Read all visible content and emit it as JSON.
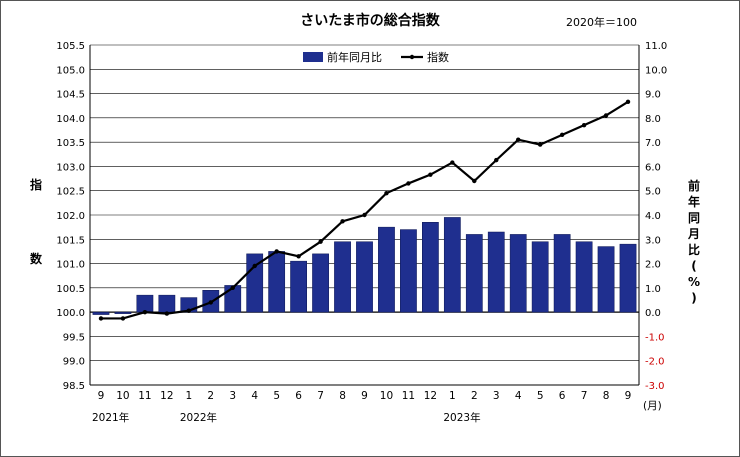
{
  "title": "さいたま市の総合指数",
  "base_note": "2020年＝100",
  "legend": {
    "bar_label": "前年同月比",
    "line_label": "指数"
  },
  "left_axis_label_top": "指",
  "left_axis_label_bottom": "数",
  "right_axis_label": "前年同月比(%)",
  "month_unit": "(月)",
  "year_labels": [
    {
      "label": "2021年",
      "index": 0
    },
    {
      "label": "2022年",
      "index": 4
    },
    {
      "label": "2023年",
      "index": 16
    }
  ],
  "chart_data": {
    "type": "bar",
    "categories": [
      "9",
      "10",
      "11",
      "12",
      "1",
      "2",
      "3",
      "4",
      "5",
      "6",
      "7",
      "8",
      "9",
      "10",
      "11",
      "12",
      "1",
      "2",
      "3",
      "4",
      "5",
      "6",
      "7",
      "8",
      "9"
    ],
    "series": [
      {
        "name": "前年同月比",
        "type": "bar",
        "axis": "right",
        "color": "#1f2f8f",
        "values": [
          -0.1,
          0.0,
          0.7,
          0.7,
          0.6,
          0.9,
          1.1,
          2.4,
          2.5,
          2.1,
          2.4,
          2.9,
          2.9,
          3.5,
          3.4,
          3.7,
          3.9,
          3.2,
          3.3,
          3.2,
          2.9,
          3.2,
          2.9,
          2.7,
          2.8
        ]
      },
      {
        "name": "指数",
        "type": "line",
        "axis": "left",
        "color": "#000000",
        "values": [
          99.87,
          99.87,
          100.0,
          99.97,
          100.03,
          100.2,
          100.5,
          100.95,
          101.25,
          101.15,
          101.45,
          101.87,
          102.0,
          102.45,
          102.65,
          102.83,
          103.08,
          102.7,
          103.13,
          103.55,
          103.45,
          103.65,
          103.85,
          104.05,
          104.33
        ]
      }
    ],
    "y_left": {
      "min": 98.5,
      "max": 105.5,
      "step": 0.5,
      "ticks": [
        "98.5",
        "99.0",
        "99.5",
        "100.0",
        "100.5",
        "101.0",
        "101.5",
        "102.0",
        "102.5",
        "103.0",
        "103.5",
        "104.0",
        "104.5",
        "105.0",
        "105.5"
      ]
    },
    "y_right": {
      "min": -3.0,
      "max": 11.0,
      "step": 1.0,
      "ticks": [
        "-3.0",
        "-2.0",
        "-1.0",
        "0.0",
        "1.0",
        "2.0",
        "3.0",
        "4.0",
        "5.0",
        "6.0",
        "7.0",
        "8.0",
        "9.0",
        "10.0",
        "11.0"
      ],
      "negative_color": "#cc0000"
    },
    "grid": "horizontal",
    "reference_line": 100.0,
    "legend_position": "top-center"
  }
}
